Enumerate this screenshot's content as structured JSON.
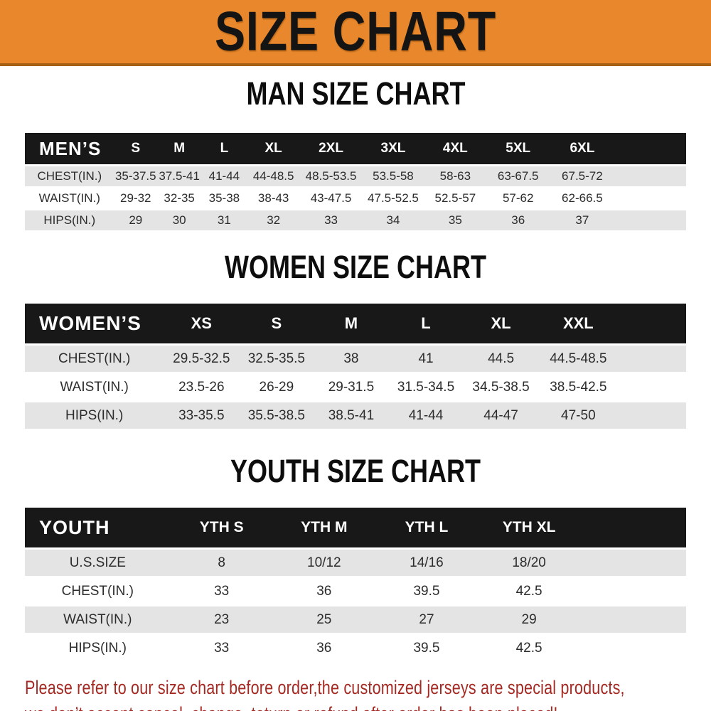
{
  "banner": {
    "title": "SIZE CHART"
  },
  "colors": {
    "banner_bg": "#E8872B",
    "banner_border": "#A65E15",
    "table_header_bg": "#181818",
    "alt_row_bg": "#E4E4E4",
    "notice_text": "#A42A23"
  },
  "sections": [
    {
      "title": "MAN SIZE CHART",
      "table": {
        "label": "MEN’S",
        "columns": [
          "S",
          "M",
          "L",
          "XL",
          "2XL",
          "3XL",
          "4XL",
          "5XL",
          "6XL"
        ],
        "rows": [
          {
            "label": "CHEST(IN.)",
            "values": [
              "35-37.5",
              "37.5-41",
              "41-44",
              "44-48.5",
              "48.5-53.5",
              "53.5-58",
              "58-63",
              "63-67.5",
              "67.5-72"
            ]
          },
          {
            "label": "WAIST(IN.)",
            "values": [
              "29-32",
              "32-35",
              "35-38",
              "38-43",
              "43-47.5",
              "47.5-52.5",
              "52.5-57",
              "57-62",
              "62-66.5"
            ]
          },
          {
            "label": "HIPS(IN.)",
            "values": [
              "29",
              "30",
              "31",
              "32",
              "33",
              "34",
              "35",
              "36",
              "37"
            ]
          }
        ]
      }
    },
    {
      "title": "WOMEN SIZE CHART",
      "table": {
        "label": "WOMEN’S",
        "columns": [
          "XS",
          "S",
          "M",
          "L",
          "XL",
          "XXL"
        ],
        "rows": [
          {
            "label": "CHEST(IN.)",
            "values": [
              "29.5-32.5",
              "32.5-35.5",
              "38",
              "41",
              "44.5",
              "44.5-48.5"
            ]
          },
          {
            "label": "WAIST(IN.)",
            "values": [
              "23.5-26",
              "26-29",
              "29-31.5",
              "31.5-34.5",
              "34.5-38.5",
              "38.5-42.5"
            ]
          },
          {
            "label": "HIPS(IN.)",
            "values": [
              "33-35.5",
              "35.5-38.5",
              "38.5-41",
              "41-44",
              "44-47",
              "47-50"
            ]
          }
        ]
      }
    },
    {
      "title": "YOUTH SIZE CHART",
      "table": {
        "label": "YOUTH",
        "columns": [
          "YTH S",
          "YTH M",
          "YTH L",
          "YTH XL"
        ],
        "rows": [
          {
            "label": "U.S.SIZE",
            "values": [
              "8",
              "10/12",
              "14/16",
              "18/20"
            ]
          },
          {
            "label": "CHEST(IN.)",
            "values": [
              "33",
              "36",
              "39.5",
              "42.5"
            ]
          },
          {
            "label": "WAIST(IN.)",
            "values": [
              "23",
              "25",
              "27",
              "29"
            ]
          },
          {
            "label": "HIPS(IN.)",
            "values": [
              "33",
              "36",
              "39.5",
              "42.5"
            ]
          }
        ]
      }
    }
  ],
  "notice": {
    "line1": "Please refer to our size chart before order,the customized jerseys are special products,",
    "line2": "we don’t accept cancel, change, teturn or refund after order has been placed!"
  }
}
